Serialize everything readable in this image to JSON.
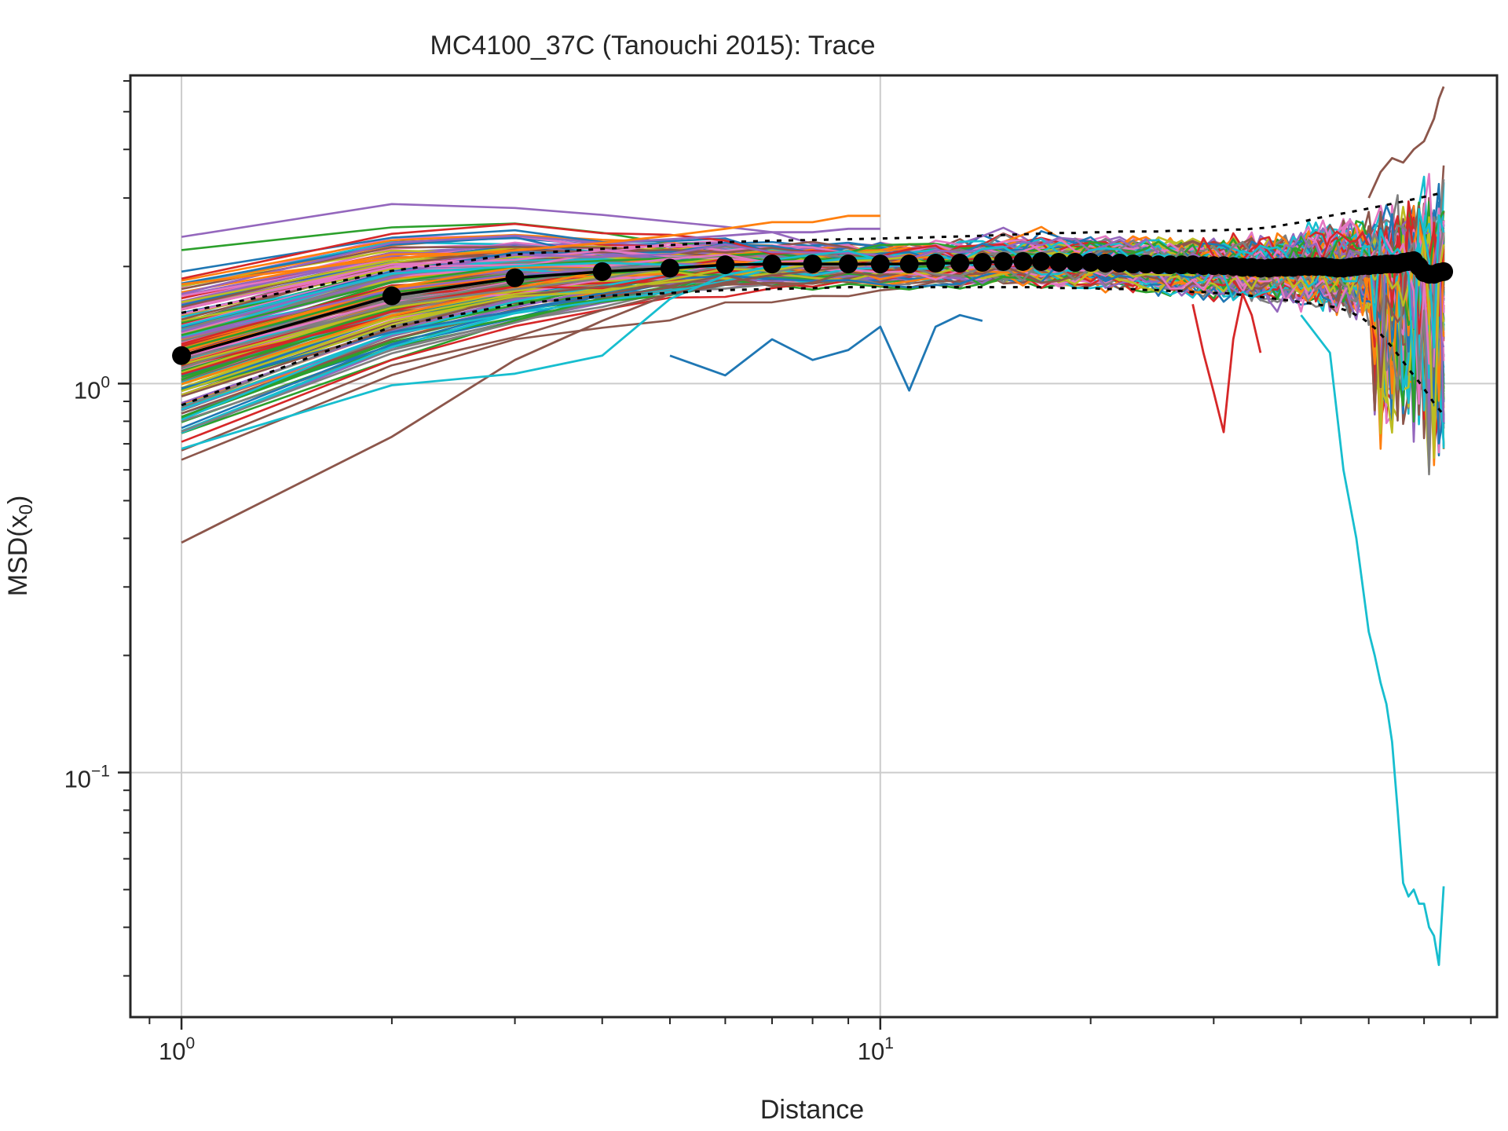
{
  "chart_data": {
    "type": "line",
    "title": "MC4100_37C (Tanouchi 2015): Trace",
    "xlabel": "Distance",
    "ylabel": "MSD(x",
    "ylabel_sub": "0",
    "ylabel_close": ")",
    "x_scale": "log",
    "y_scale": "log",
    "xlim": [
      0.845,
      76.3
    ],
    "ylim": [
      0.0235,
      6.2
    ],
    "grid": true,
    "legend": "none",
    "x_ticks": [
      {
        "value": 1,
        "base": "10",
        "exp": "0"
      },
      {
        "value": 10,
        "base": "10",
        "exp": "1"
      }
    ],
    "y_ticks": [
      {
        "value": 0.1,
        "base": "10",
        "exp": "−1"
      },
      {
        "value": 1,
        "base": "10",
        "exp": "0"
      }
    ],
    "mean_series": {
      "name": "",
      "color": "#000000",
      "x": [
        1,
        2,
        3,
        4,
        5,
        6,
        7,
        8,
        9,
        10,
        11,
        12,
        13,
        14,
        15,
        16,
        17,
        18,
        19,
        20,
        21,
        22,
        23,
        24,
        25,
        26,
        27,
        28,
        29,
        30,
        31,
        32,
        33,
        34,
        35,
        36,
        37,
        38,
        39,
        40,
        41,
        42,
        43,
        44,
        45,
        46,
        47,
        48,
        49,
        50,
        51,
        52,
        53,
        54,
        55,
        56,
        57,
        58,
        59,
        60,
        61,
        62,
        63,
        64
      ],
      "y": [
        1.18,
        1.68,
        1.87,
        1.94,
        1.98,
        2.02,
        2.03,
        2.03,
        2.03,
        2.03,
        2.03,
        2.04,
        2.04,
        2.05,
        2.06,
        2.06,
        2.06,
        2.05,
        2.05,
        2.05,
        2.04,
        2.04,
        2.03,
        2.03,
        2.02,
        2.02,
        2.02,
        2.02,
        2.01,
        2.01,
        2.01,
        2.0,
        1.99,
        1.99,
        1.98,
        1.98,
        1.99,
        1.99,
        1.99,
        2.0,
        2.0,
        2.0,
        2.0,
        1.99,
        1.98,
        1.98,
        1.99,
        2.0,
        2.01,
        2.01,
        2.02,
        2.02,
        2.03,
        2.03,
        2.03,
        2.05,
        2.06,
        2.07,
        2.0,
        1.93,
        1.91,
        1.91,
        1.93,
        1.94
      ]
    },
    "upper_band": {
      "x": [
        1,
        2,
        3,
        4,
        5,
        6,
        7,
        8,
        9,
        10,
        11,
        12,
        13,
        14,
        15,
        16,
        17,
        18,
        19,
        20,
        21,
        22,
        23,
        24,
        25,
        26,
        27,
        28,
        29,
        30,
        31,
        32,
        33,
        34,
        35,
        36,
        37,
        38,
        39,
        40,
        41,
        42,
        43,
        44,
        45,
        46,
        47,
        48,
        49,
        50,
        51,
        52,
        53,
        54,
        55,
        56,
        57,
        58,
        59,
        60,
        61,
        62,
        63,
        64
      ],
      "y": [
        1.52,
        1.95,
        2.15,
        2.22,
        2.27,
        2.31,
        2.33,
        2.34,
        2.35,
        2.36,
        2.37,
        2.38,
        2.39,
        2.4,
        2.41,
        2.42,
        2.43,
        2.44,
        2.44,
        2.45,
        2.45,
        2.46,
        2.46,
        2.46,
        2.46,
        2.47,
        2.47,
        2.47,
        2.47,
        2.48,
        2.48,
        2.49,
        2.49,
        2.5,
        2.51,
        2.52,
        2.54,
        2.56,
        2.58,
        2.6,
        2.63,
        2.66,
        2.68,
        2.7,
        2.72,
        2.74,
        2.76,
        2.78,
        2.8,
        2.82,
        2.84,
        2.86,
        2.88,
        2.9,
        2.92,
        2.94,
        2.96,
        2.98,
        3.0,
        3.02,
        3.04,
        3.06,
        3.08,
        3.1
      ]
    },
    "lower_band": {
      "x": [
        1,
        2,
        3,
        4,
        5,
        6,
        7,
        8,
        9,
        10,
        11,
        12,
        13,
        14,
        15,
        16,
        17,
        18,
        19,
        20,
        21,
        22,
        23,
        24,
        25,
        26,
        27,
        28,
        29,
        30,
        31,
        32,
        33,
        34,
        35,
        36,
        37,
        38,
        39,
        40,
        41,
        42,
        43,
        44,
        45,
        46,
        47,
        48,
        49,
        50,
        51,
        52,
        53,
        54,
        55,
        56,
        57,
        58,
        59,
        60,
        61,
        62,
        63,
        64
      ],
      "y": [
        0.88,
        1.4,
        1.6,
        1.68,
        1.71,
        1.74,
        1.75,
        1.76,
        1.77,
        1.77,
        1.77,
        1.77,
        1.77,
        1.77,
        1.77,
        1.77,
        1.77,
        1.76,
        1.76,
        1.76,
        1.75,
        1.75,
        1.75,
        1.74,
        1.74,
        1.73,
        1.73,
        1.72,
        1.72,
        1.71,
        1.71,
        1.7,
        1.69,
        1.68,
        1.67,
        1.66,
        1.65,
        1.64,
        1.63,
        1.62,
        1.61,
        1.6,
        1.59,
        1.58,
        1.57,
        1.55,
        1.53,
        1.5,
        1.47,
        1.43,
        1.39,
        1.34,
        1.29,
        1.24,
        1.19,
        1.14,
        1.09,
        1.05,
        1.01,
        0.97,
        0.93,
        0.89,
        0.86,
        0.83
      ]
    },
    "sample_traces": [
      {
        "color": "#8c564b",
        "x": [
          1,
          2,
          3,
          4,
          5,
          6,
          7,
          8,
          9,
          10
        ],
        "y": [
          0.39,
          0.73,
          1.15,
          1.45,
          1.7,
          1.82,
          1.9,
          1.95,
          2.0,
          2.05
        ]
      },
      {
        "color": "#17becf",
        "x": [
          1,
          2,
          3,
          4,
          5,
          6,
          7,
          8,
          9,
          10
        ],
        "y": [
          0.68,
          0.99,
          1.06,
          1.18,
          1.65,
          1.9,
          2.0,
          2.05,
          2.1,
          2.1
        ]
      },
      {
        "color": "#1f77b4",
        "x": [
          5,
          6,
          7,
          8,
          9,
          10,
          11,
          12,
          13,
          14
        ],
        "y": [
          1.18,
          1.05,
          1.3,
          1.15,
          1.22,
          1.4,
          0.96,
          1.4,
          1.5,
          1.45
        ]
      },
      {
        "color": "#17becf",
        "x": [
          40,
          44,
          46,
          48,
          50,
          51,
          52,
          53,
          54,
          55,
          56,
          57,
          58,
          59,
          60,
          61,
          62,
          63,
          64
        ],
        "y": [
          1.5,
          1.2,
          0.6,
          0.4,
          0.23,
          0.2,
          0.17,
          0.15,
          0.12,
          0.08,
          0.052,
          0.048,
          0.05,
          0.046,
          0.046,
          0.04,
          0.038,
          0.032,
          0.051
        ]
      },
      {
        "color": "#8c564b",
        "x": [
          50,
          52,
          54,
          56,
          58,
          60,
          62,
          63,
          64
        ],
        "y": [
          3.0,
          3.5,
          3.8,
          3.7,
          4.0,
          4.2,
          4.8,
          5.4,
          5.8
        ]
      },
      {
        "color": "#d62728",
        "x": [
          28,
          29,
          30,
          31,
          32,
          33,
          34,
          35
        ],
        "y": [
          1.6,
          1.2,
          0.95,
          0.75,
          1.3,
          1.7,
          1.5,
          1.2
        ]
      },
      {
        "color": "#9467bd",
        "x": [
          1,
          2,
          3,
          4,
          5,
          6,
          7,
          8,
          9,
          10
        ],
        "y": [
          1.7,
          2.3,
          2.4,
          2.3,
          2.35,
          2.4,
          2.45,
          2.45,
          2.5,
          2.5
        ]
      },
      {
        "color": "#ff7f0e",
        "x": [
          1,
          2,
          3,
          4,
          5,
          6,
          7,
          8,
          9,
          10
        ],
        "y": [
          1.8,
          2.1,
          2.2,
          2.3,
          2.4,
          2.5,
          2.6,
          2.6,
          2.7,
          2.7
        ]
      }
    ],
    "trace_bundle_count": 180,
    "trace_palette": [
      "#1f77b4",
      "#ff7f0e",
      "#2ca02c",
      "#d62728",
      "#9467bd",
      "#8c564b",
      "#e377c2",
      "#7f7f7f",
      "#bcbd22",
      "#17becf"
    ]
  }
}
